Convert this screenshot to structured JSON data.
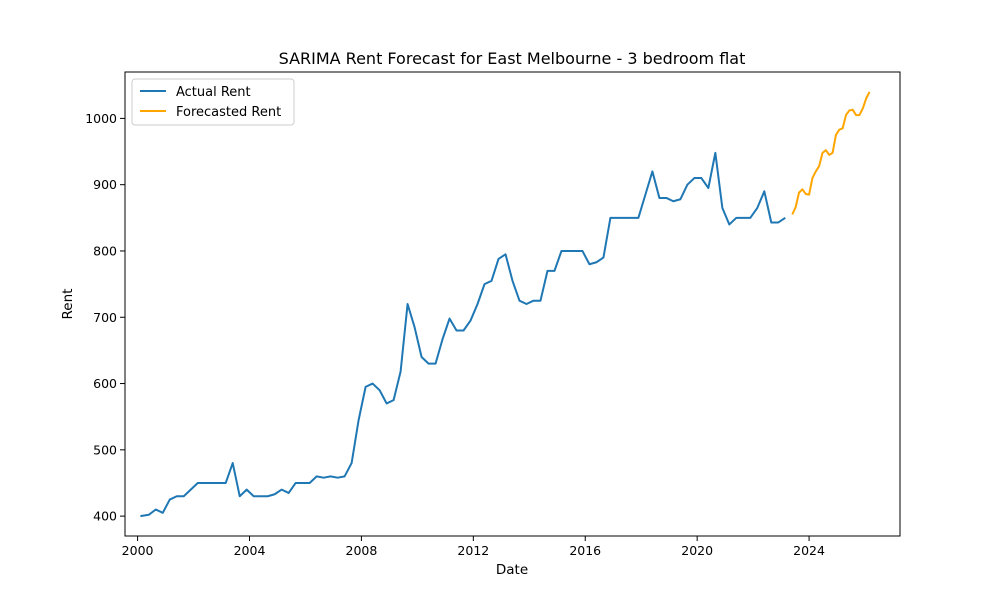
{
  "chart_data": {
    "type": "line",
    "title": "SARIMA Rent Forecast for East Melbourne - 3 bedroom flat",
    "xlabel": "Date",
    "ylabel": "Rent",
    "xlim": [
      1999.55,
      2027.25
    ],
    "ylim": [
      370,
      1070
    ],
    "x_ticks": [
      2000,
      2004,
      2008,
      2012,
      2016,
      2020,
      2024
    ],
    "x_tick_labels": [
      "2000",
      "2004",
      "2008",
      "2012",
      "2016",
      "2020",
      "2024"
    ],
    "y_ticks": [
      400,
      500,
      600,
      700,
      800,
      900,
      1000
    ],
    "y_tick_labels": [
      "400",
      "500",
      "600",
      "700",
      "800",
      "900",
      "1000"
    ],
    "grid": false,
    "legend_position": "upper-left",
    "series": [
      {
        "name": "Actual Rent",
        "color": "#1f77b4",
        "x": [
          2000.1,
          2000.4,
          2000.65,
          2000.9,
          2001.15,
          2001.4,
          2001.65,
          2001.9,
          2002.15,
          2002.4,
          2002.65,
          2002.9,
          2003.15,
          2003.4,
          2003.65,
          2003.9,
          2004.15,
          2004.4,
          2004.65,
          2004.9,
          2005.15,
          2005.4,
          2005.65,
          2005.9,
          2006.15,
          2006.4,
          2006.65,
          2006.9,
          2007.15,
          2007.4,
          2007.65,
          2007.9,
          2008.15,
          2008.4,
          2008.65,
          2008.9,
          2009.15,
          2009.4,
          2009.65,
          2009.9,
          2010.15,
          2010.4,
          2010.65,
          2010.9,
          2011.15,
          2011.4,
          2011.65,
          2011.9,
          2012.15,
          2012.4,
          2012.65,
          2012.9,
          2013.15,
          2013.4,
          2013.65,
          2013.9,
          2014.15,
          2014.4,
          2014.65,
          2014.9,
          2015.15,
          2015.4,
          2015.65,
          2015.9,
          2016.15,
          2016.4,
          2016.65,
          2016.9,
          2017.15,
          2017.4,
          2017.65,
          2017.9,
          2018.15,
          2018.4,
          2018.65,
          2018.9,
          2019.15,
          2019.4,
          2019.65,
          2019.9,
          2020.15,
          2020.4,
          2020.65,
          2020.9,
          2021.15,
          2021.4,
          2021.65,
          2021.9,
          2022.15,
          2022.4,
          2022.65,
          2022.9,
          2023.15
        ],
        "values": [
          400,
          402,
          410,
          405,
          425,
          430,
          430,
          440,
          450,
          450,
          450,
          450,
          450,
          480,
          430,
          440,
          430,
          430,
          430,
          433,
          440,
          435,
          450,
          450,
          450,
          460,
          458,
          460,
          458,
          460,
          480,
          545,
          595,
          600,
          590,
          570,
          575,
          618,
          720,
          685,
          640,
          630,
          630,
          667,
          698,
          680,
          680,
          695,
          720,
          750,
          755,
          788,
          795,
          755,
          725,
          720,
          725,
          725,
          770,
          770,
          800,
          800,
          800,
          800,
          780,
          783,
          790,
          850,
          850,
          850,
          850,
          850,
          885,
          920,
          880,
          880,
          875,
          878,
          900,
          910,
          910,
          895,
          948,
          865,
          840,
          850,
          850,
          850,
          865,
          890,
          843,
          843,
          850
        ]
      },
      {
        "name": "Forecasted Rent",
        "color": "#ffa500",
        "x": [
          2023.4,
          2023.52,
          2023.64,
          2023.76,
          2023.88,
          2024.0,
          2024.12,
          2024.24,
          2024.36,
          2024.48,
          2024.6,
          2024.72,
          2024.84,
          2024.96,
          2025.08,
          2025.2,
          2025.32,
          2025.44,
          2025.56,
          2025.68,
          2025.8,
          2025.92,
          2026.04,
          2026.16
        ],
        "values": [
          855,
          866,
          888,
          893,
          886,
          885,
          910,
          920,
          928,
          948,
          952,
          945,
          948,
          975,
          983,
          985,
          1005,
          1012,
          1013,
          1005,
          1005,
          1015,
          1030,
          1040
        ]
      }
    ]
  }
}
